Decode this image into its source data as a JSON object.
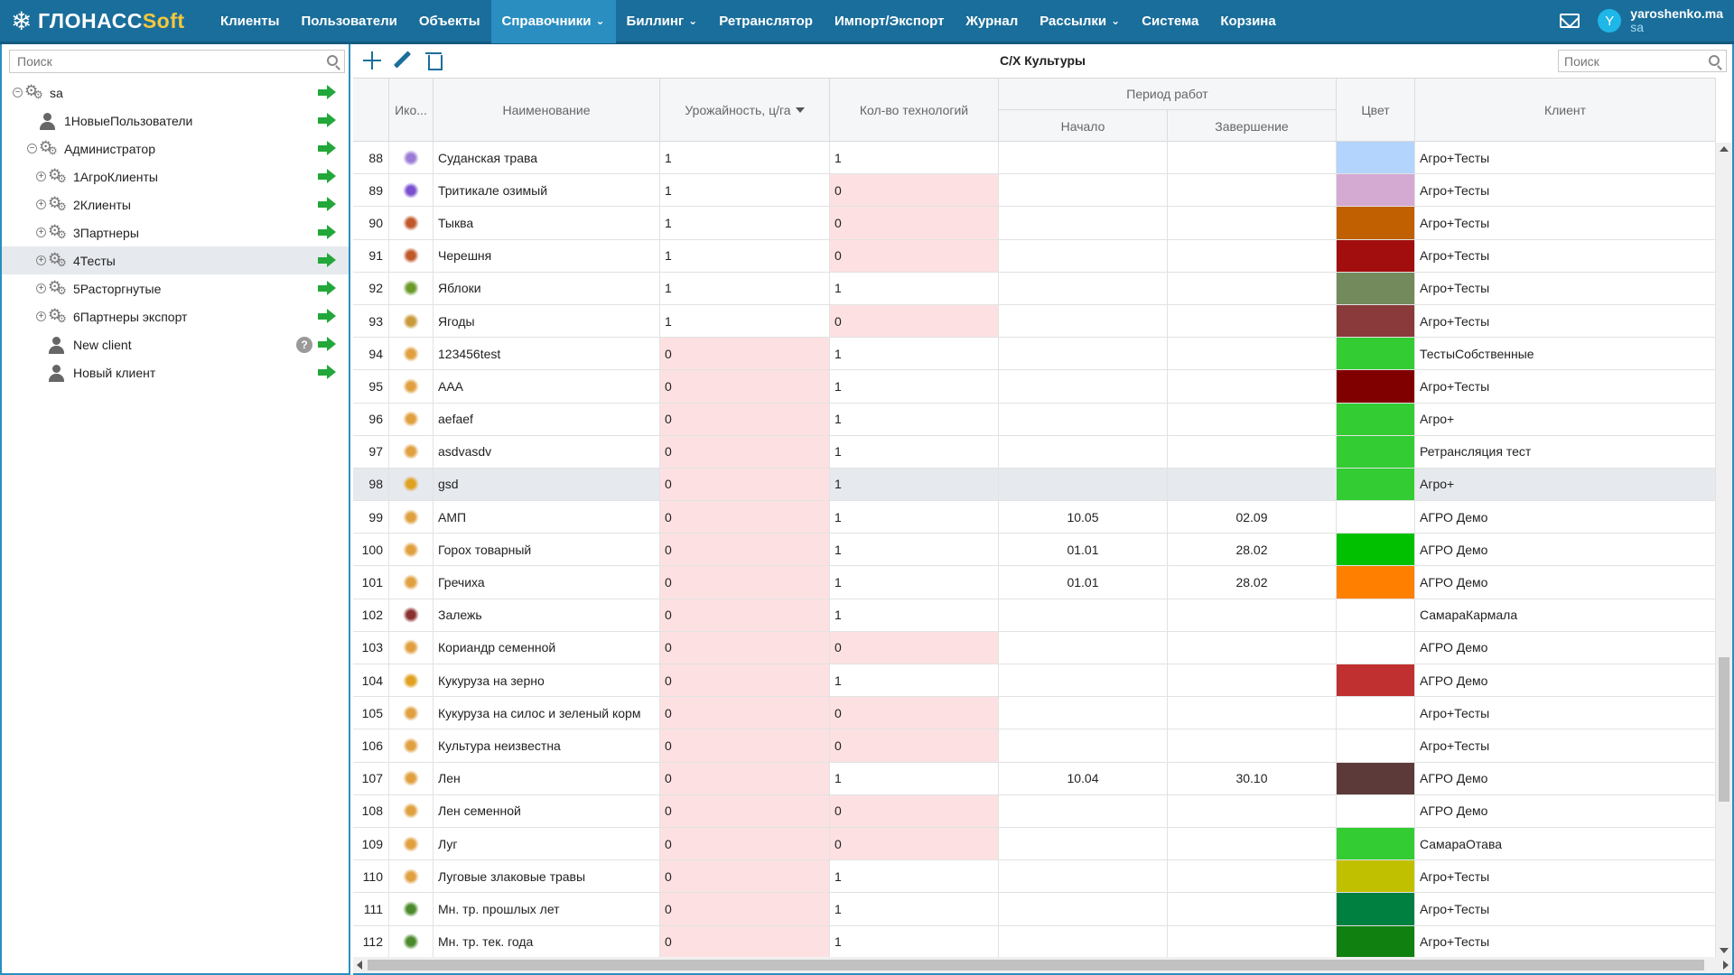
{
  "app": {
    "logo_main": "ГЛОНАСС",
    "logo_accent": "Soft"
  },
  "nav": [
    {
      "label": "Клиенты",
      "active": false,
      "dropdown": false
    },
    {
      "label": "Пользователи",
      "active": false,
      "dropdown": false
    },
    {
      "label": "Объекты",
      "active": false,
      "dropdown": false
    },
    {
      "label": "Справочники",
      "active": true,
      "dropdown": true
    },
    {
      "label": "Биллинг",
      "active": false,
      "dropdown": true
    },
    {
      "label": "Ретранслятор",
      "active": false,
      "dropdown": false
    },
    {
      "label": "Импорт/Экспорт",
      "active": false,
      "dropdown": false
    },
    {
      "label": "Журнал",
      "active": false,
      "dropdown": false
    },
    {
      "label": "Рассылки",
      "active": false,
      "dropdown": true
    },
    {
      "label": "Система",
      "active": false,
      "dropdown": false
    },
    {
      "label": "Корзина",
      "active": false,
      "dropdown": false
    }
  ],
  "user": {
    "avatar_letter": "Y",
    "name": "yaroshenko.ma",
    "role": "sa"
  },
  "left": {
    "search_placeholder": "Поиск",
    "tree": [
      {
        "label": "sa",
        "level": 0,
        "toggle": "⊖",
        "icon": "gear",
        "selected": false,
        "help": false
      },
      {
        "label": "1НовыеПользователи",
        "level": 1,
        "toggle": "",
        "icon": "user",
        "selected": false,
        "help": false
      },
      {
        "label": "Администратор",
        "level": 1,
        "toggle": "⊖",
        "icon": "gear",
        "selected": false,
        "help": false
      },
      {
        "label": "1АгроКлиенты",
        "level": 2,
        "toggle": "⊕",
        "icon": "gear",
        "selected": false,
        "help": false
      },
      {
        "label": "2Клиенты",
        "level": 2,
        "toggle": "⊕",
        "icon": "gear",
        "selected": false,
        "help": false
      },
      {
        "label": "3Партнеры",
        "level": 2,
        "toggle": "⊕",
        "icon": "gear",
        "selected": false,
        "help": false
      },
      {
        "label": "4Тесты",
        "level": 2,
        "toggle": "⊕",
        "icon": "gear",
        "selected": true,
        "help": false
      },
      {
        "label": "5Расторгнутые",
        "level": 2,
        "toggle": "⊕",
        "icon": "gear",
        "selected": false,
        "help": false
      },
      {
        "label": "6Партнеры экспорт",
        "level": 2,
        "toggle": "⊕",
        "icon": "gear",
        "selected": false,
        "help": false
      },
      {
        "label": "New client",
        "level": 2,
        "toggle": "",
        "icon": "user",
        "selected": false,
        "help": true
      },
      {
        "label": "Новый клиент",
        "level": 2,
        "toggle": "",
        "icon": "user",
        "selected": false,
        "help": false
      }
    ]
  },
  "grid": {
    "title": "С/Х Культуры",
    "search_placeholder": "Поиск",
    "headers": {
      "icon": "Ико...",
      "name": "Наименование",
      "yield": "Урожайность, ц/га",
      "tech": "Кол-во технологий",
      "period": "Период работ",
      "start": "Начало",
      "end": "Завершение",
      "color": "Цвет",
      "client": "Клиент"
    },
    "rows": [
      {
        "n": "88",
        "icon_color": "#9b7bd6",
        "icon": "lavender-icon",
        "name": "Суданская трава",
        "yield": "1",
        "tech": "1",
        "start": "",
        "end": "",
        "color": "#b3d4fc",
        "client": "Агро+Тесты"
      },
      {
        "n": "89",
        "icon_color": "#7a4fd0",
        "icon": "wheat-icon",
        "name": "Тритикале озимый",
        "yield": "1",
        "tech": "0",
        "start": "",
        "end": "",
        "color": "#d4a9d2",
        "client": "Агро+Тесты"
      },
      {
        "n": "90",
        "icon_color": "#c0592a",
        "icon": "pumpkin-icon",
        "name": "Тыква",
        "yield": "1",
        "tech": "0",
        "start": "",
        "end": "",
        "color": "#c06000",
        "client": "Агро+Тесты"
      },
      {
        "n": "91",
        "icon_color": "#c0592a",
        "icon": "cherry-icon",
        "name": "Черешня",
        "yield": "1",
        "tech": "0",
        "start": "",
        "end": "",
        "color": "#a20d0d",
        "client": "Агро+Тесты"
      },
      {
        "n": "92",
        "icon_color": "#6a9a2a",
        "icon": "apple-icon",
        "name": "Яблоки",
        "yield": "1",
        "tech": "1",
        "start": "",
        "end": "",
        "color": "#728a5c",
        "client": "Агро+Тесты"
      },
      {
        "n": "93",
        "icon_color": "#c89a3a",
        "icon": "berries-icon",
        "name": "Ягоды",
        "yield": "1",
        "tech": "0",
        "start": "",
        "end": "",
        "color": "#8a3a3a",
        "client": "Агро+Тесты"
      },
      {
        "n": "94",
        "icon_color": "#e0a040",
        "icon": "wheat-icon",
        "name": "123456test",
        "yield": "0",
        "tech": "1",
        "start": "",
        "end": "",
        "color": "#33cc33",
        "client": "ТестыСобственные"
      },
      {
        "n": "95",
        "icon_color": "#e0a040",
        "icon": "wheat-icon",
        "name": "AAA",
        "yield": "0",
        "tech": "1",
        "start": "",
        "end": "",
        "color": "#800000",
        "client": "Агро+Тесты"
      },
      {
        "n": "96",
        "icon_color": "#e0a040",
        "icon": "wheat-icon",
        "name": "aefaef",
        "yield": "0",
        "tech": "1",
        "start": "",
        "end": "",
        "color": "#33cc33",
        "client": "Агро+"
      },
      {
        "n": "97",
        "icon_color": "#e0a040",
        "icon": "wheat-icon",
        "name": "asdvasdv",
        "yield": "0",
        "tech": "1",
        "start": "",
        "end": "",
        "color": "#33cc33",
        "client": "Ретрансляция тест"
      },
      {
        "n": "98",
        "icon_color": "#e0a020",
        "icon": "corn-icon",
        "name": "gsd",
        "yield": "0",
        "tech": "1",
        "start": "",
        "end": "",
        "color": "#33cc33",
        "client": "Агро+",
        "selected": true
      },
      {
        "n": "99",
        "icon_color": "#e0a040",
        "icon": "wheat-icon",
        "name": "АМП",
        "yield": "0",
        "tech": "1",
        "start": "10.05",
        "end": "02.09",
        "color": "",
        "client": "АГРО Демо"
      },
      {
        "n": "100",
        "icon_color": "#e0a040",
        "icon": "wheat-icon",
        "name": "Горох товарный",
        "yield": "0",
        "tech": "1",
        "start": "01.01",
        "end": "28.02",
        "color": "#00c000",
        "client": "АГРО Демо"
      },
      {
        "n": "101",
        "icon_color": "#e0a040",
        "icon": "wheat-icon",
        "name": "Гречиха",
        "yield": "0",
        "tech": "1",
        "start": "01.01",
        "end": "28.02",
        "color": "#ff8000",
        "client": "АГРО Демо"
      },
      {
        "n": "102",
        "icon_color": "#8a3030",
        "icon": "fallow-icon",
        "name": "Залежь",
        "yield": "0",
        "tech": "1",
        "start": "",
        "end": "",
        "color": "",
        "client": "СамараКармала"
      },
      {
        "n": "103",
        "icon_color": "#e0a040",
        "icon": "wheat-icon",
        "name": "Кориандр семенной",
        "yield": "0",
        "tech": "0",
        "start": "",
        "end": "",
        "color": "",
        "client": "АГРО Демо"
      },
      {
        "n": "104",
        "icon_color": "#e0a020",
        "icon": "corn-icon",
        "name": "Кукуруза на зерно",
        "yield": "0",
        "tech": "1",
        "start": "",
        "end": "",
        "color": "#c03030",
        "client": "АГРО Демо"
      },
      {
        "n": "105",
        "icon_color": "#e0a040",
        "icon": "wheat-icon",
        "name": "Кукуруза на силос и зеленый корм",
        "yield": "0",
        "tech": "0",
        "start": "",
        "end": "",
        "color": "",
        "client": "Агро+Тесты"
      },
      {
        "n": "106",
        "icon_color": "#e0a040",
        "icon": "wheat-icon",
        "name": "Культура неизвестна",
        "yield": "0",
        "tech": "0",
        "start": "",
        "end": "",
        "color": "",
        "client": "Агро+Тесты"
      },
      {
        "n": "107",
        "icon_color": "#e0a040",
        "icon": "wheat-icon",
        "name": "Лен",
        "yield": "0",
        "tech": "1",
        "start": "10.04",
        "end": "30.10",
        "color": "#5c3a3a",
        "client": "АГРО Демо"
      },
      {
        "n": "108",
        "icon_color": "#e0a040",
        "icon": "wheat-icon",
        "name": "Лен семенной",
        "yield": "0",
        "tech": "0",
        "start": "",
        "end": "",
        "color": "",
        "client": "АГРО Демо"
      },
      {
        "n": "109",
        "icon_color": "#e0a040",
        "icon": "wheat-icon",
        "name": "Луг",
        "yield": "0",
        "tech": "0",
        "start": "",
        "end": "",
        "color": "#33cc33",
        "client": "СамараОтава"
      },
      {
        "n": "110",
        "icon_color": "#e0a040",
        "icon": "wheat-icon",
        "name": "Луговые злаковые травы",
        "yield": "0",
        "tech": "1",
        "start": "",
        "end": "",
        "color": "#c0c000",
        "client": "Агро+Тесты"
      },
      {
        "n": "111",
        "icon_color": "#4a8a2a",
        "icon": "grass-icon",
        "name": "Мн. тр. прошлых лет",
        "yield": "0",
        "tech": "1",
        "start": "",
        "end": "",
        "color": "#008040",
        "client": "Агро+Тесты"
      },
      {
        "n": "112",
        "icon_color": "#4a8a2a",
        "icon": "grass-icon",
        "name": "Мн. тр. тек. года",
        "yield": "0",
        "tech": "1",
        "start": "",
        "end": "",
        "color": "#108010",
        "client": "Агро+Тесты"
      }
    ]
  }
}
